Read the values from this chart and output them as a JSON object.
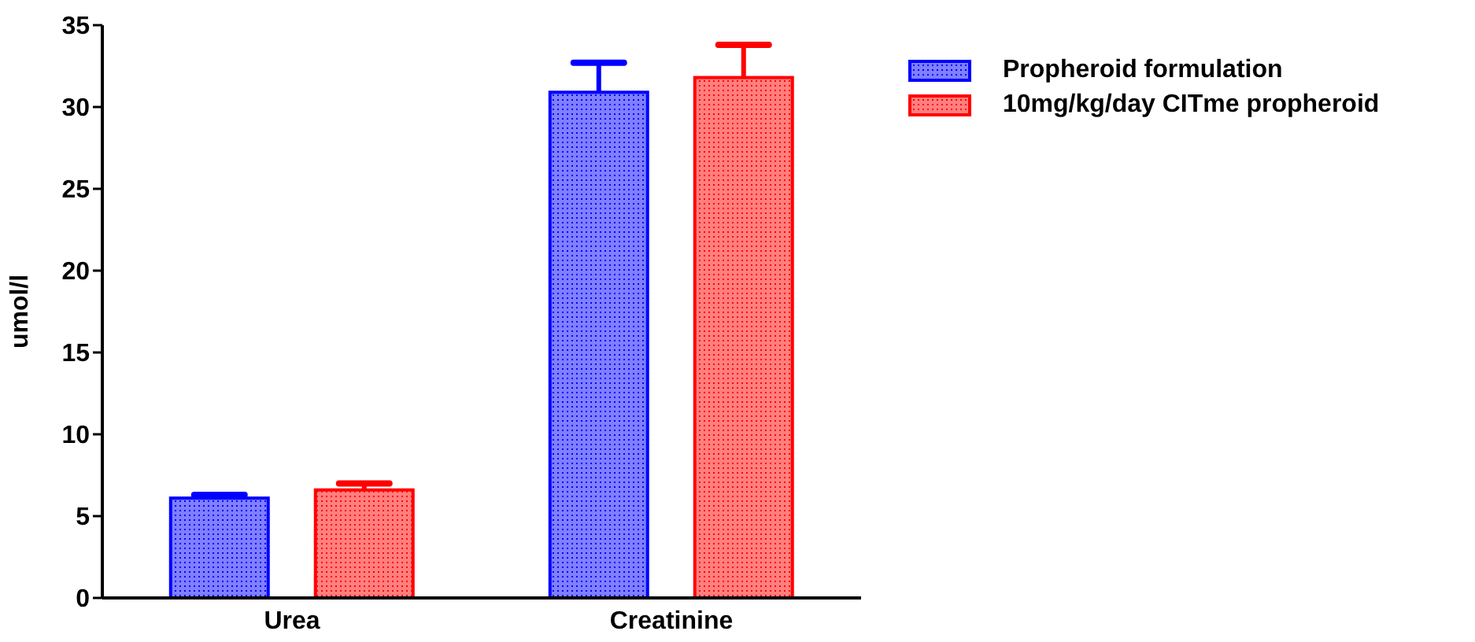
{
  "chart_data": {
    "type": "bar",
    "ylabel": "umol/l",
    "categories": [
      "Urea",
      "Creatinine"
    ],
    "series": [
      {
        "name": "Propheroid formulation",
        "color": "#0000ff",
        "values": [
          6.1,
          30.9
        ],
        "errors": [
          [
            6.1,
            6.3
          ],
          [
            30.9,
            32.7
          ]
        ]
      },
      {
        "name": "10mg/kg/day CITme propheroid",
        "color": "#ff0000",
        "values": [
          6.6,
          31.8
        ],
        "errors": [
          [
            6.6,
            7.0
          ],
          [
            31.8,
            33.8
          ]
        ]
      }
    ],
    "ylim": [
      0,
      35
    ],
    "yticks": [
      0,
      5,
      10,
      15,
      20,
      25,
      30,
      35
    ],
    "grid": false,
    "legend": "top right"
  }
}
